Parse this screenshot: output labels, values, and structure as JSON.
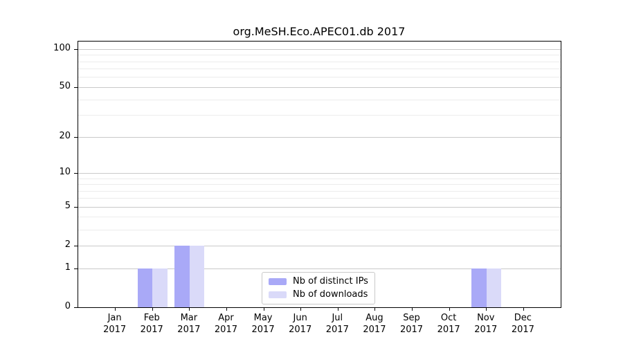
{
  "title": "org.MeSH.Eco.APEC01.db 2017",
  "chart_data": {
    "type": "bar",
    "title": "org.MeSH.Eco.APEC01.db 2017",
    "categories": [
      "Jan",
      "Feb",
      "Mar",
      "Apr",
      "May",
      "Jun",
      "Jul",
      "Aug",
      "Sep",
      "Oct",
      "Nov",
      "Dec"
    ],
    "category_year": "2017",
    "series": [
      {
        "name": "Nb of distinct IPs",
        "color": "#a9a9f7",
        "values": [
          0,
          1,
          2,
          0,
          0,
          0,
          0,
          0,
          0,
          0,
          1,
          0
        ]
      },
      {
        "name": "Nb of downloads",
        "color": "#dadaf9",
        "values": [
          0,
          1,
          2,
          0,
          0,
          0,
          0,
          0,
          0,
          0,
          1,
          0
        ]
      }
    ],
    "xlabel": "",
    "ylabel": "",
    "yscale": "log1p",
    "ylim": [
      0,
      115
    ],
    "yticks": [
      0,
      1,
      2,
      5,
      10,
      20,
      50,
      100
    ],
    "minor_gridlines": [
      3,
      4,
      6,
      7,
      8,
      9,
      30,
      40,
      60,
      70,
      80,
      90
    ],
    "grid": "horizontal",
    "colors": {
      "major_gridline": "#c9c9c9",
      "minor_gridline": "#ececec",
      "spine": "#000000",
      "background": "#ffffff"
    },
    "legend_position": "lower center inside plot"
  }
}
